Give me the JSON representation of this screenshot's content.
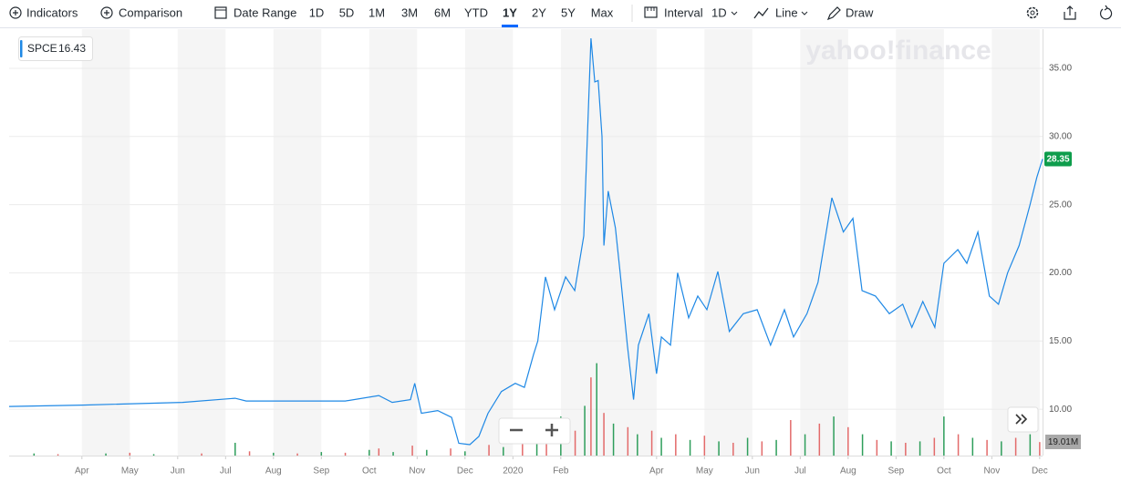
{
  "toolbar": {
    "indicators": "Indicators",
    "comparison": "Comparison",
    "date_range": "Date Range",
    "ranges": [
      "1D",
      "5D",
      "1M",
      "3M",
      "6M",
      "YTD",
      "1Y",
      "2Y",
      "5Y",
      "Max"
    ],
    "selected_range": 6,
    "interval": "Interval",
    "interval_value": "1D",
    "chart_type": "Line",
    "draw": "Draw"
  },
  "chart_data": {
    "type": "line",
    "watermark": "yahoo!finance",
    "xlim": [
      0.48,
      22.06
    ],
    "xticks": [
      {
        "value": 2,
        "label": "Apr"
      },
      {
        "value": 3,
        "label": "May"
      },
      {
        "value": 4,
        "label": "Jun"
      },
      {
        "value": 5,
        "label": "Jul"
      },
      {
        "value": 6,
        "label": "Aug"
      },
      {
        "value": 7,
        "label": "Sep"
      },
      {
        "value": 8,
        "label": "Oct"
      },
      {
        "value": 9,
        "label": "Nov"
      },
      {
        "value": 10,
        "label": "Dec"
      },
      {
        "value": 11,
        "label": "2020"
      },
      {
        "value": 12,
        "label": "Feb"
      },
      {
        "value": 14,
        "label": "Apr"
      },
      {
        "value": 15,
        "label": "May"
      },
      {
        "value": 16,
        "label": "Jun"
      },
      {
        "value": 17,
        "label": "Jul"
      },
      {
        "value": 18,
        "label": "Aug"
      },
      {
        "value": 19,
        "label": "Sep"
      },
      {
        "value": 20,
        "label": "Oct"
      },
      {
        "value": 21,
        "label": "Nov"
      },
      {
        "value": 22,
        "label": "Dec"
      }
    ],
    "ylim": [
      6.6,
      37.87
    ],
    "yticks": [
      {
        "value": 10,
        "label": "10.00"
      },
      {
        "value": 15,
        "label": "15.00"
      },
      {
        "value": 20,
        "label": "20.00"
      },
      {
        "value": 25,
        "label": "25.00"
      },
      {
        "value": 30,
        "label": "30.00"
      },
      {
        "value": 35,
        "label": "35.00"
      }
    ],
    "grid": true,
    "legend_value": 16.43,
    "x": [
      0.48,
      2.0,
      4.1,
      5.2,
      5.43,
      7.5,
      8.2,
      8.48,
      8.86,
      8.95,
      9.09,
      9.43,
      9.72,
      9.87,
      10.1,
      10.29,
      10.48,
      10.76,
      11.05,
      11.24,
      11.43,
      11.52,
      11.68,
      11.87,
      12.1,
      12.29,
      12.48,
      12.63,
      12.71,
      12.78,
      12.86,
      12.9,
      12.99,
      13.14,
      13.24,
      13.39,
      13.52,
      13.62,
      13.84,
      14.0,
      14.1,
      14.29,
      14.44,
      14.67,
      14.86,
      15.05,
      15.28,
      15.52,
      15.81,
      16.1,
      16.38,
      16.67,
      16.86,
      17.14,
      17.37,
      17.66,
      17.9,
      18.1,
      18.29,
      18.57,
      18.86,
      19.14,
      19.33,
      19.56,
      19.81,
      20.0,
      20.29,
      20.48,
      20.71,
      20.95,
      21.14,
      21.33,
      21.57,
      21.8,
      21.94,
      22.06
    ],
    "series": [
      {
        "name": "SPCE",
        "color": "#1e88e5",
        "values": [
          10.2,
          10.3,
          10.5,
          10.8,
          10.6,
          10.6,
          11.0,
          10.5,
          10.7,
          11.9,
          9.7,
          9.9,
          9.4,
          7.5,
          7.4,
          8.0,
          9.7,
          11.3,
          11.9,
          11.6,
          14.0,
          15.0,
          19.7,
          17.3,
          19.7,
          18.7,
          22.7,
          37.2,
          34.0,
          34.1,
          30.0,
          22.0,
          26.0,
          23.3,
          20.0,
          14.7,
          10.7,
          14.7,
          17.0,
          12.6,
          15.3,
          14.7,
          20.0,
          16.7,
          18.3,
          17.3,
          20.1,
          15.7,
          17.0,
          17.3,
          14.7,
          17.3,
          15.3,
          17.0,
          19.3,
          25.5,
          23.0,
          24.0,
          18.7,
          18.3,
          17.0,
          17.7,
          16.0,
          17.9,
          16.0,
          20.7,
          21.7,
          20.7,
          23.0,
          18.3,
          17.7,
          20.0,
          22.0,
          25.0,
          27.0,
          28.35
        ]
      }
    ],
    "volume": {
      "ylim": [
        0,
        600
      ],
      "up_color": "#2e9e5b",
      "down_color": "#e36a6a",
      "last_label": "19.01M",
      "x": [
        1.0,
        1.5,
        2.5,
        3.0,
        3.5,
        4.5,
        5.2,
        5.5,
        6.0,
        6.5,
        7.0,
        7.5,
        8.0,
        8.2,
        8.5,
        8.9,
        9.2,
        9.7,
        10.0,
        10.5,
        10.8,
        11.2,
        11.5,
        11.7,
        12.0,
        12.3,
        12.5,
        12.63,
        12.75,
        12.9,
        13.1,
        13.4,
        13.6,
        13.9,
        14.1,
        14.4,
        14.7,
        15.0,
        15.3,
        15.6,
        15.9,
        16.2,
        16.5,
        16.8,
        17.1,
        17.4,
        17.7,
        18.0,
        18.3,
        18.6,
        18.9,
        19.2,
        19.5,
        19.8,
        20.0,
        20.3,
        20.6,
        20.9,
        21.2,
        21.5,
        21.8,
        22.0
      ],
      "values": [
        3,
        2,
        3,
        4,
        2,
        3,
        18,
        6,
        4,
        3,
        5,
        4,
        8,
        10,
        5,
        14,
        8,
        10,
        6,
        15,
        12,
        25,
        30,
        40,
        55,
        35,
        70,
        110,
        130,
        60,
        45,
        40,
        30,
        35,
        25,
        30,
        22,
        28,
        20,
        18,
        25,
        20,
        22,
        50,
        30,
        45,
        55,
        40,
        30,
        22,
        20,
        18,
        20,
        25,
        55,
        30,
        25,
        22,
        20,
        25,
        30,
        19.01
      ],
      "up": [
        true,
        false,
        true,
        false,
        true,
        false,
        true,
        false,
        true,
        false,
        true,
        false,
        true,
        false,
        true,
        false,
        true,
        false,
        true,
        false,
        true,
        false,
        true,
        false,
        true,
        false,
        true,
        false,
        true,
        false,
        true,
        false,
        true,
        false,
        true,
        false,
        true,
        false,
        true,
        false,
        true,
        false,
        true,
        false,
        true,
        false,
        true,
        false,
        true,
        false,
        true,
        false,
        true,
        false,
        true,
        false,
        true,
        false,
        true,
        false,
        true,
        false
      ]
    }
  }
}
